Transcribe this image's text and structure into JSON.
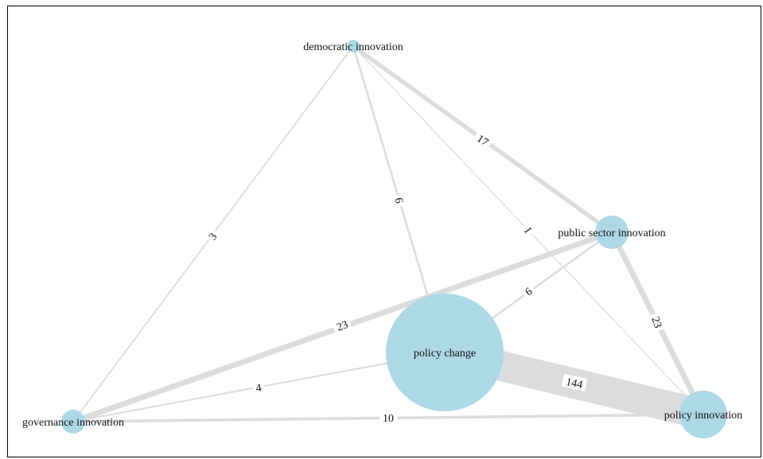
{
  "graph": {
    "nodes": [
      {
        "id": "democratic",
        "label": "democratic innovation",
        "size": "small"
      },
      {
        "id": "public",
        "label": "public sector innovation",
        "size": "medium"
      },
      {
        "id": "change",
        "label": "policy change",
        "size": "large"
      },
      {
        "id": "governance",
        "label": "governance innovation",
        "size": "small"
      },
      {
        "id": "policy",
        "label": "policy innovation",
        "size": "medium"
      }
    ],
    "edges": [
      {
        "source": "change",
        "target": "policy",
        "weight": 144,
        "label": "144"
      },
      {
        "source": "public",
        "target": "governance",
        "weight": 23,
        "label": "23"
      },
      {
        "source": "public",
        "target": "policy",
        "weight": 23,
        "label": "23"
      },
      {
        "source": "democratic",
        "target": "public",
        "weight": 17,
        "label": "17"
      },
      {
        "source": "governance",
        "target": "policy",
        "weight": 10,
        "label": "10"
      },
      {
        "source": "democratic",
        "target": "change",
        "weight": 6,
        "label": "6"
      },
      {
        "source": "change",
        "target": "public",
        "weight": 6,
        "label": "6"
      },
      {
        "source": "governance",
        "target": "change",
        "weight": 4,
        "label": "4"
      },
      {
        "source": "democratic",
        "target": "governance",
        "weight": 3,
        "label": "3"
      },
      {
        "source": "democratic",
        "target": "policy",
        "weight": 1,
        "label": "1"
      }
    ],
    "colors": {
      "node_fill": "#add8e6",
      "edge_stroke": "#dcdcdc",
      "label_text": "#111111",
      "frame": "#000000"
    }
  }
}
